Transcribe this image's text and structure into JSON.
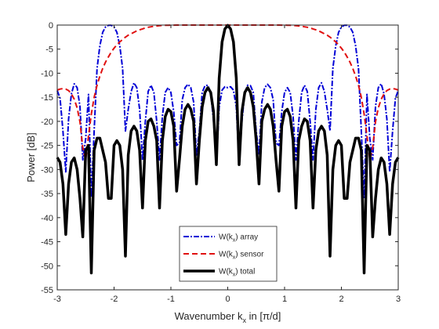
{
  "chart_data": {
    "type": "line",
    "title": "",
    "xlabel": "Wavenumber k_x in [π/d]",
    "xlabel_main": "Wavenumber k",
    "xlabel_sub": "x",
    "xlabel_unit": " in [π/d]",
    "ylabel": "Power [dB]",
    "xlim": [
      -3,
      3
    ],
    "ylim": [
      -55,
      0
    ],
    "x_ticks": [
      -3,
      -2,
      -1,
      0,
      1,
      2,
      3
    ],
    "y_ticks": [
      0,
      -5,
      -10,
      -15,
      -20,
      -25,
      -30,
      -35,
      -40,
      -45,
      -50,
      -55
    ],
    "grid": false,
    "legend_position": "bottom-center",
    "x": [
      -3.0,
      -2.95,
      -2.9,
      -2.85,
      -2.8,
      -2.75,
      -2.7,
      -2.65,
      -2.6,
      -2.55,
      -2.5,
      -2.45,
      -2.4,
      -2.35,
      -2.3,
      -2.25,
      -2.2,
      -2.15,
      -2.1,
      -2.05,
      -2.0,
      -1.95,
      -1.9,
      -1.85,
      -1.8,
      -1.75,
      -1.7,
      -1.65,
      -1.6,
      -1.55,
      -1.5,
      -1.45,
      -1.4,
      -1.35,
      -1.3,
      -1.25,
      -1.2,
      -1.15,
      -1.1,
      -1.05,
      -1.0,
      -0.95,
      -0.9,
      -0.85,
      -0.8,
      -0.75,
      -0.7,
      -0.65,
      -0.6,
      -0.55,
      -0.5,
      -0.45,
      -0.4,
      -0.35,
      -0.3,
      -0.25,
      -0.2,
      -0.15,
      -0.1,
      -0.05,
      0.0,
      0.05,
      0.1,
      0.15,
      0.2,
      0.25,
      0.3,
      0.35,
      0.4,
      0.45,
      0.5,
      0.55,
      0.6,
      0.65,
      0.7,
      0.75,
      0.8,
      0.85,
      0.9,
      0.95,
      1.0,
      1.05,
      1.1,
      1.15,
      1.2,
      1.25,
      1.3,
      1.35,
      1.4,
      1.45,
      1.5,
      1.55,
      1.6,
      1.65,
      1.7,
      1.75,
      1.8,
      1.85,
      1.9,
      1.95,
      2.0,
      2.05,
      2.1,
      2.15,
      2.2,
      2.25,
      2.3,
      2.35,
      2.4,
      2.45,
      2.5,
      2.55,
      2.6,
      2.65,
      2.7,
      2.75,
      2.8,
      2.85,
      2.9,
      2.95,
      3.0
    ],
    "series": [
      {
        "name": "W(k_x) array",
        "label_main": "W(k",
        "label_sub": "x",
        "label_tail": ") array",
        "color": "#0000d6",
        "dash": "7 2 2 2",
        "width": 2,
        "values": [
          -13.6,
          -15.2,
          -22.0,
          -30.5,
          -19.5,
          -14.3,
          -12.2,
          -13.0,
          -16.9,
          -28.0,
          -23.6,
          -14.4,
          -35.8,
          -22.0,
          -9.0,
          -4.3,
          -1.5,
          -0.4,
          -0.05,
          -0.05,
          -0.4,
          -1.5,
          -4.3,
          -9.0,
          -22.0,
          -17.5,
          -13.8,
          -12.0,
          -13.0,
          -17.5,
          -28.0,
          -20.0,
          -13.8,
          -12.5,
          -14.0,
          -20.0,
          -28.0,
          -19.0,
          -14.0,
          -13.0,
          -14.0,
          -18.0,
          -25.0,
          -24.5,
          -15.5,
          -13.0,
          -12.3,
          -13.0,
          -16.0,
          -27.0,
          -22.0,
          -14.0,
          -12.6,
          -12.5,
          -14.0,
          -20.0,
          -29.0,
          -17.0,
          -13.5,
          -12.8,
          -13.0,
          -12.8,
          -13.5,
          -17.0,
          -29.0,
          -20.0,
          -14.0,
          -12.5,
          -12.6,
          -14.0,
          -22.0,
          -27.0,
          -16.0,
          -13.0,
          -12.3,
          -13.0,
          -15.5,
          -24.5,
          -25.0,
          -18.0,
          -14.0,
          -13.0,
          -14.0,
          -19.0,
          -28.0,
          -20.0,
          -14.0,
          -12.5,
          -13.8,
          -20.0,
          -28.0,
          -17.5,
          -13.0,
          -12.0,
          -13.8,
          -17.5,
          -22.0,
          -9.0,
          -4.3,
          -1.5,
          -0.4,
          -0.05,
          -0.05,
          -0.4,
          -1.5,
          -4.3,
          -9.0,
          -22.0,
          -35.8,
          -14.4,
          -23.6,
          -28.0,
          -16.9,
          -13.0,
          -12.2,
          -14.3,
          -19.5,
          -30.5,
          -22.0,
          -15.2,
          -13.6
        ]
      },
      {
        "name": "W(k_x) sensor",
        "label_main": "W(k",
        "label_sub": "x",
        "label_tail": ") sensor",
        "color": "#e01010",
        "dash": "7 4",
        "width": 2,
        "values": [
          -13.5,
          -13.3,
          -13.2,
          -13.3,
          -13.6,
          -14.3,
          -15.4,
          -17.2,
          -20.1,
          -25.5,
          -28.0,
          -23.0,
          -18.5,
          -15.0,
          -12.5,
          -10.6,
          -9.0,
          -7.7,
          -6.6,
          -5.6,
          -4.8,
          -4.1,
          -3.5,
          -3.0,
          -2.5,
          -2.1,
          -1.8,
          -1.5,
          -1.2,
          -1.0,
          -0.8,
          -0.6,
          -0.45,
          -0.35,
          -0.25,
          -0.18,
          -0.12,
          -0.08,
          -0.05,
          -0.03,
          -0.02,
          -0.01,
          0.0,
          0.0,
          0.0,
          0.0,
          0.0,
          0.0,
          0.0,
          0.0,
          0.0,
          0.0,
          0.0,
          0.0,
          0.0,
          0.0,
          0.0,
          0.0,
          0.0,
          0.0,
          0.0,
          0.0,
          0.0,
          0.0,
          0.0,
          0.0,
          0.0,
          0.0,
          0.0,
          0.0,
          0.0,
          0.0,
          0.0,
          0.0,
          0.0,
          0.0,
          0.0,
          0.0,
          0.0,
          -0.01,
          -0.02,
          -0.03,
          -0.05,
          -0.08,
          -0.12,
          -0.18,
          -0.25,
          -0.35,
          -0.45,
          -0.6,
          -0.8,
          -1.0,
          -1.2,
          -1.5,
          -1.8,
          -2.1,
          -2.5,
          -3.0,
          -3.5,
          -4.1,
          -4.8,
          -5.6,
          -6.6,
          -7.7,
          -9.0,
          -10.6,
          -12.5,
          -15.0,
          -18.5,
          -23.0,
          -28.0,
          -25.5,
          -20.1,
          -17.2,
          -15.4,
          -14.3,
          -13.6,
          -13.3,
          -13.2,
          -13.3,
          -13.5
        ]
      },
      {
        "name": "W(k_x) total",
        "label_main": "W(k",
        "label_sub": "x",
        "label_tail": ") total",
        "color": "#000000",
        "dash": "",
        "width": 3.5,
        "values": [
          -27.5,
          -28.5,
          -33.0,
          -43.5,
          -33.0,
          -28.5,
          -27.6,
          -30.0,
          -36.0,
          -44.0,
          -26.0,
          -25.0,
          -51.5,
          -26.0,
          -23.5,
          -23.5,
          -26.0,
          -28.5,
          -36.0,
          -36.0,
          -25.0,
          -24.0,
          -25.0,
          -30.0,
          -48.0,
          -27.0,
          -22.0,
          -21.0,
          -22.0,
          -26.0,
          -38.0,
          -24.0,
          -20.0,
          -19.5,
          -21.0,
          -24.0,
          -38.0,
          -24.0,
          -19.0,
          -17.5,
          -18.0,
          -21.0,
          -34.5,
          -28.0,
          -21.0,
          -17.5,
          -16.5,
          -17.5,
          -20.0,
          -33.0,
          -24.0,
          -17.0,
          -14.0,
          -13.0,
          -14.0,
          -18.0,
          -29.0,
          -11.0,
          -3.5,
          -0.8,
          -0.05,
          -0.8,
          -3.5,
          -11.0,
          -29.0,
          -18.0,
          -14.0,
          -13.0,
          -14.0,
          -17.0,
          -24.0,
          -33.0,
          -20.0,
          -17.5,
          -16.5,
          -17.5,
          -21.0,
          -28.0,
          -34.5,
          -21.0,
          -18.0,
          -17.5,
          -19.0,
          -24.0,
          -38.0,
          -24.0,
          -21.0,
          -19.5,
          -20.0,
          -24.0,
          -38.0,
          -26.0,
          -22.0,
          -21.0,
          -22.0,
          -27.0,
          -48.0,
          -30.0,
          -25.0,
          -24.0,
          -25.0,
          -36.0,
          -36.0,
          -28.5,
          -26.0,
          -23.5,
          -23.5,
          -26.0,
          -51.5,
          -25.0,
          -26.0,
          -44.0,
          -36.0,
          -30.0,
          -27.6,
          -28.5,
          -33.0,
          -43.5,
          -33.0,
          -28.5,
          -27.5
        ]
      }
    ]
  }
}
